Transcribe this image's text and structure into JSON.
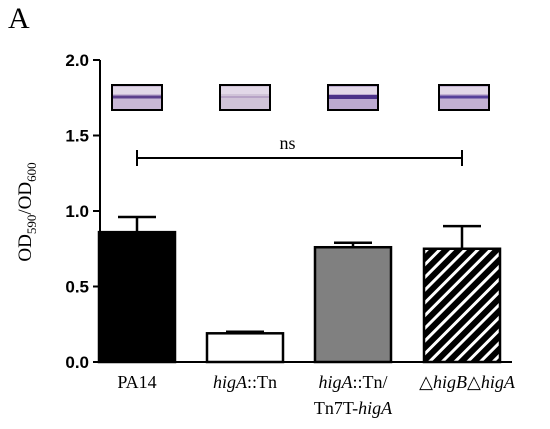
{
  "panel_label": "A",
  "chart_data": {
    "type": "bar",
    "categories": [
      "PA14",
      "higA::Tn",
      "higA::Tn/Tn7T-higA",
      "△higB△higA"
    ],
    "category_labels": [
      [
        {
          "t": "PA14",
          "i": false
        }
      ],
      [
        {
          "t": "higA",
          "i": true
        },
        {
          "t": "::Tn",
          "i": false
        }
      ],
      [
        {
          "t": "higA",
          "i": true
        },
        {
          "t": "::Tn/",
          "i": false
        }
      ],
      [
        {
          "t": "△",
          "i": false
        },
        {
          "t": "higB",
          "i": true
        },
        {
          "t": "△",
          "i": false
        },
        {
          "t": "higA",
          "i": true
        }
      ]
    ],
    "category_labels_line2": [
      [],
      [],
      [
        {
          "t": "Tn7T-",
          "i": false
        },
        {
          "t": "higA",
          "i": true
        }
      ],
      []
    ],
    "values": [
      0.86,
      0.19,
      0.76,
      0.75
    ],
    "errors": [
      0.1,
      0.01,
      0.03,
      0.15
    ],
    "bar_fills": [
      "#000000",
      "#ffffff",
      "#808080",
      "hatch"
    ],
    "ylabel": "OD590/OD600",
    "ylabel_parts": {
      "main1": "OD",
      "sub1": "590",
      "slash": "/OD",
      "sub2": "600"
    },
    "ylim": [
      0.0,
      2.0
    ],
    "yticks": [
      "0.0",
      "0.5",
      "1.0",
      "1.5",
      "2.0"
    ],
    "ytick_values": [
      0.0,
      0.5,
      1.0,
      1.5,
      2.0
    ],
    "significance": {
      "label": "ns",
      "from_category": 0,
      "to_category": 3,
      "y": 1.52
    },
    "well_images": 4,
    "grid": false,
    "legend": "none"
  }
}
